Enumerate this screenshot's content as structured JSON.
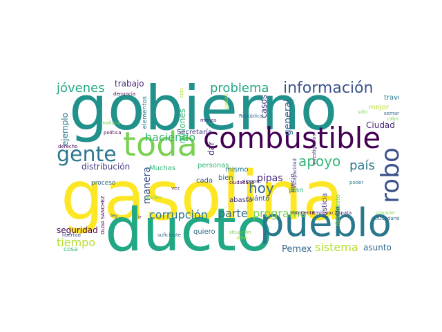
{
  "wordcloud": {
    "words": [
      {
        "text": "gasolina",
        "color": "#fde725"
      },
      {
        "text": "gobierno",
        "color": "#21918c"
      },
      {
        "text": "ducto",
        "color": "#22a884"
      },
      {
        "text": "pueblo",
        "color": "#2a788e"
      },
      {
        "text": "toda",
        "color": "#7ad151"
      },
      {
        "text": "combustible",
        "color": "#440154"
      },
      {
        "text": "gente",
        "color": "#2a788e"
      },
      {
        "text": "robo",
        "color": "#3b528b"
      },
      {
        "text": "información",
        "color": "#3b528b"
      },
      {
        "text": "problema",
        "color": "#22a884"
      },
      {
        "text": "apoyo",
        "color": "#35b779"
      },
      {
        "text": "jóvenes",
        "color": "#22a884"
      },
      {
        "text": "país",
        "color": "#2a788e"
      },
      {
        "text": "hoy",
        "color": "#31688e"
      },
      {
        "text": "programa",
        "color": "#7ad151"
      },
      {
        "text": "parte",
        "color": "#31688e"
      },
      {
        "text": "tiempo",
        "color": "#b5de2b"
      },
      {
        "text": "sistema",
        "color": "#b5de2b"
      },
      {
        "text": "haciendo",
        "color": "#35b779"
      },
      {
        "text": "corrupción",
        "color": "#2a788e"
      },
      {
        "text": "pipas",
        "color": "#482878"
      },
      {
        "text": "general",
        "color": "#31688e"
      },
      {
        "text": "manera",
        "color": "#3b528b"
      },
      {
        "text": "distribución",
        "color": "#443983"
      },
      {
        "text": "trabajo",
        "color": "#482878"
      },
      {
        "text": "millones",
        "color": "#35b779"
      },
      {
        "text": "Pemex",
        "color": "#31688e"
      },
      {
        "text": "seguridad",
        "color": "#440154"
      },
      {
        "text": "asunto",
        "color": "#31688e"
      },
      {
        "text": "casos",
        "color": "#443983"
      },
      {
        "text": "dar",
        "color": "#482878"
      },
      {
        "text": "ejemplo",
        "color": "#2a788e"
      },
      {
        "text": "Ciudad",
        "color": "#482878"
      },
      {
        "text": "mejor",
        "color": "#b5de2b"
      },
      {
        "text": "través",
        "color": "#2a788e"
      },
      {
        "text": "Muchas",
        "color": "#35b779"
      },
      {
        "text": "Secretaría",
        "color": "#443983"
      },
      {
        "text": "personas",
        "color": "#35b779"
      },
      {
        "text": "cada",
        "color": "#3b528b"
      },
      {
        "text": "mismo",
        "color": "#2a788e"
      },
      {
        "text": "bien",
        "color": "#31688e"
      },
      {
        "text": "cuánto",
        "color": "#3b528b"
      },
      {
        "text": "abasto",
        "color": "#443983"
      },
      {
        "text": "quiero",
        "color": "#31688e"
      },
      {
        "text": "plan",
        "color": "#35b779"
      },
      {
        "text": "justicia",
        "color": "#443983"
      },
      {
        "text": "desabasto",
        "color": "#7ad151"
      },
      {
        "text": "precio",
        "color": "#482878"
      },
      {
        "text": "proceso",
        "color": "#31688e"
      },
      {
        "text": "cosa",
        "color": "#35b779"
      },
      {
        "text": "elementos",
        "color": "#2a788e"
      },
      {
        "text": "pesos",
        "color": "#b5de2b"
      },
      {
        "text": "derecho",
        "color": "#440154"
      },
      {
        "text": "sólo",
        "color": "#7ad151"
      },
      {
        "text": "cabo",
        "color": "#7ad151"
      },
      {
        "text": "semana",
        "color": "#31688e"
      },
      {
        "text": "conocer",
        "color": "#7ad151"
      },
      {
        "text": "poder",
        "color": "#2a788e"
      },
      {
        "text": "ciudadanos",
        "color": "#31688e"
      },
      {
        "text": "momento",
        "color": "#440154"
      },
      {
        "text": "Emiliano Zapata",
        "color": "#482878"
      },
      {
        "text": "siempre",
        "color": "#3b528b"
      },
      {
        "text": "ciudadano",
        "color": "#440154"
      },
      {
        "text": "situación",
        "color": "#7ad151"
      },
      {
        "text": "años",
        "color": "#b5de2b"
      },
      {
        "text": "denuncia",
        "color": "#440154"
      },
      {
        "text": "mañana",
        "color": "#7ad151"
      },
      {
        "text": "política",
        "color": "#440154"
      },
      {
        "text": "República",
        "color": "#31688e"
      },
      {
        "text": "investigación",
        "color": "#482878"
      },
      {
        "text": "discapacidad",
        "color": "#443983"
      },
      {
        "text": "sido",
        "color": "#b5de2b"
      },
      {
        "text": "menos",
        "color": "#482878"
      },
      {
        "text": "vez",
        "color": "#482878"
      },
      {
        "text": "ayuden",
        "color": "#7ad151"
      },
      {
        "text": "ley",
        "color": "#31688e"
      },
      {
        "text": "ir",
        "color": "#440154"
      },
      {
        "text": "OLGA SÁNCHEZ",
        "color": "#440154"
      },
      {
        "text": "libertad",
        "color": "#3b528b"
      },
      {
        "text": "suficiente",
        "color": "#31688e"
      }
    ]
  }
}
